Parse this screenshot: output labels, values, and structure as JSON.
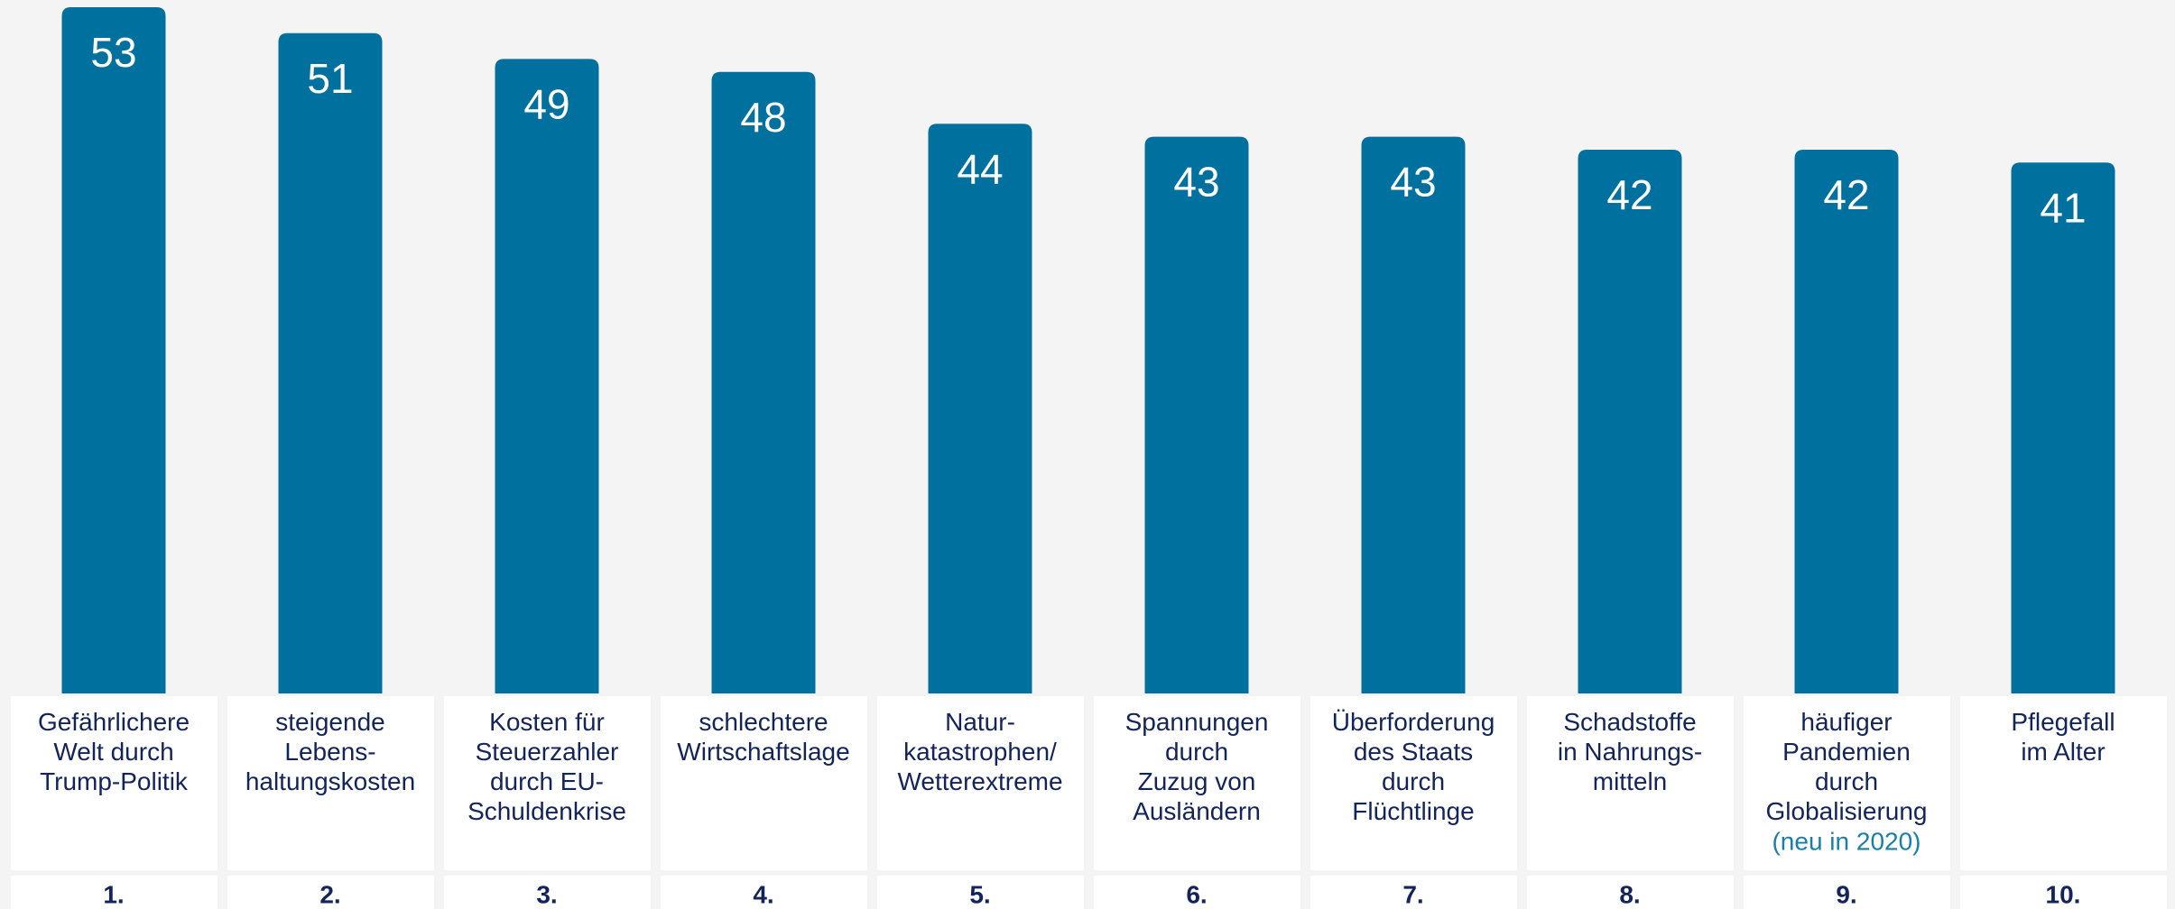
{
  "chart_data": {
    "type": "bar",
    "categories": [
      [
        "Gefährlichere",
        "Welt durch",
        "Trump-Politik"
      ],
      [
        "steigende",
        "Lebens-",
        "haltungskosten"
      ],
      [
        "Kosten für",
        "Steuerzahler",
        "durch EU-",
        "Schuldenkrise"
      ],
      [
        "schlechtere",
        "Wirtschaftslage"
      ],
      [
        "Natur-",
        "katastrophen/",
        "Wetterextreme"
      ],
      [
        "Spannungen",
        "durch",
        "Zuzug von",
        "Ausländern"
      ],
      [
        "Überforderung",
        "des Staats",
        "durch",
        "Flüchtlinge"
      ],
      [
        "Schadstoffe",
        "in Nahrungs-",
        "mitteln"
      ],
      [
        "häufiger",
        "Pandemien",
        "durch",
        "Globalisierung"
      ],
      [
        "Pflegefall",
        "im Alter"
      ]
    ],
    "category_notes": [
      null,
      null,
      null,
      null,
      null,
      null,
      null,
      null,
      "(neu in 2020)",
      null
    ],
    "note_color": "#1a7fa8",
    "ranks": [
      "1.",
      "2.",
      "3.",
      "4.",
      "5.",
      "6.",
      "7.",
      "8.",
      "9.",
      "10."
    ],
    "values": [
      53,
      51,
      49,
      48,
      44,
      43,
      43,
      42,
      42,
      41
    ],
    "color": "#00709e"
  }
}
